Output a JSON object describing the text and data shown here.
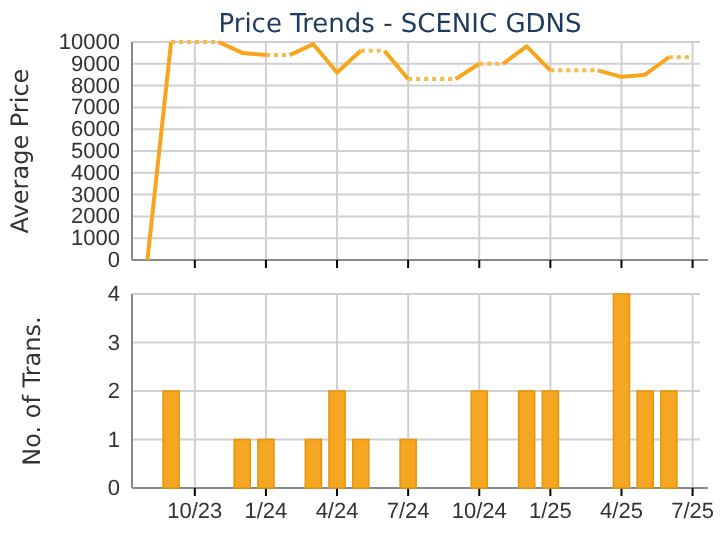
{
  "chart_data": [
    {
      "type": "line",
      "title": "Price Trends - SCENIC GDNS",
      "ylabel": "Average Price",
      "categories": [
        null,
        null,
        null,
        null,
        null,
        null,
        null,
        null,
        null,
        null,
        null,
        null,
        null,
        null,
        null,
        null,
        null,
        null,
        null,
        null,
        null,
        null,
        null,
        null
      ],
      "ylim": [
        0,
        10000
      ],
      "yticks": [
        0,
        1000,
        2000,
        3000,
        4000,
        5000,
        6000,
        7000,
        8000,
        9000,
        10000
      ],
      "grid": true,
      "tick_labels": "y",
      "marker": "none",
      "series": [
        {
          "color": "#f7a51c",
          "line_style": "solid",
          "values": [
            0,
            10000,
            null,
            10000,
            9500,
            9400,
            null,
            null,
            null,
            null,
            9600,
            8300,
            null,
            null,
            null,
            9000,
            9800,
            8700,
            null,
            null,
            null,
            null,
            null,
            null
          ]
        },
        {
          "color": "#f7a51c",
          "line_style": "solid",
          "values": [
            null,
            null,
            null,
            null,
            null,
            null,
            9400,
            9900,
            8600,
            9600,
            null,
            null,
            null,
            8300,
            9000,
            null,
            null,
            null,
            null,
            8700,
            8400,
            8500,
            9300,
            null
          ]
        },
        {
          "color": "#f9b84a",
          "line_style": "dotted",
          "values": [
            null,
            10000,
            10000,
            10000,
            null,
            null,
            null,
            null,
            null,
            9600,
            9600,
            null,
            null,
            null,
            9000,
            9000,
            null,
            null,
            null,
            null,
            null,
            null,
            9300,
            9300
          ]
        },
        {
          "color": "#f9b84a",
          "line_style": "dotted",
          "values": [
            null,
            null,
            null,
            null,
            null,
            9400,
            9400,
            null,
            null,
            null,
            null,
            8300,
            8300,
            8300,
            null,
            null,
            null,
            8700,
            8700,
            8700,
            null,
            null,
            null,
            null
          ]
        }
      ]
    },
    {
      "type": "bar",
      "ylabel": "No. of Trans.",
      "categories": [
        null,
        null,
        "10/23",
        null,
        null,
        "1/24",
        null,
        null,
        "4/24",
        null,
        null,
        "7/24",
        null,
        null,
        "10/24",
        null,
        null,
        "1/25",
        null,
        null,
        "4/25",
        null,
        null,
        "7/25"
      ],
      "ylim": [
        0,
        4
      ],
      "yticks": [
        0,
        1,
        2,
        3,
        4
      ],
      "grid": true,
      "color": "#f5a623",
      "values": [
        0,
        2,
        0,
        0,
        1,
        1,
        0,
        1,
        2,
        1,
        0,
        1,
        0,
        0,
        2,
        0,
        2,
        2,
        0,
        0,
        4,
        2,
        2,
        0
      ]
    }
  ]
}
